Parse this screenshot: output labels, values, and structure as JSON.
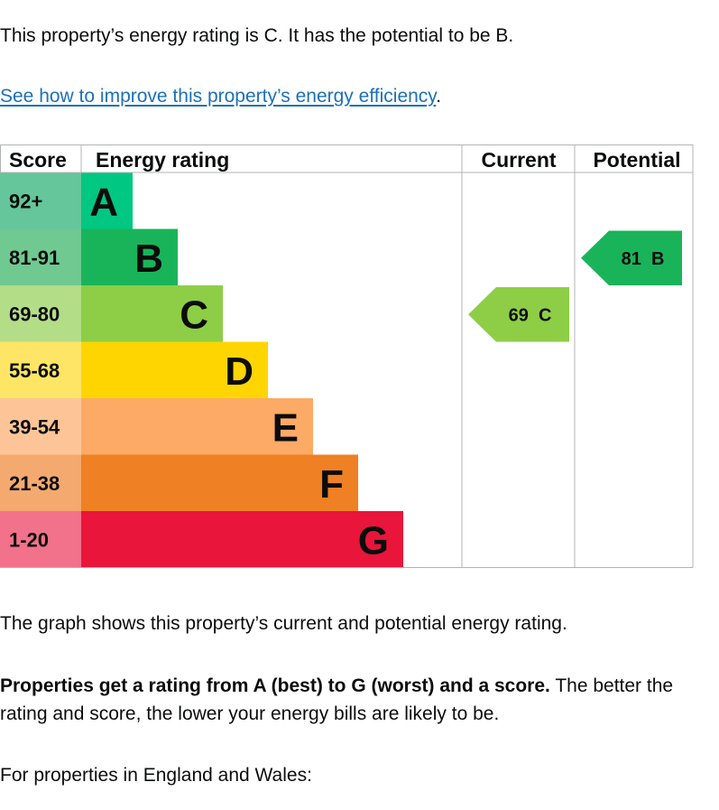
{
  "intro": {
    "rating_sentence": "This property’s energy rating is C. It has the potential to be B.",
    "improve_link": "See how to improve this property’s energy efficiency",
    "improve_link_suffix": "."
  },
  "chart": {
    "headers": {
      "score": "Score",
      "energy_rating": "Energy rating",
      "current": "Current",
      "potential": "Potential"
    },
    "bands": [
      {
        "score": "92+",
        "letter": "A",
        "color": "#00c781",
        "score_bg": "#64c69a"
      },
      {
        "score": "81-91",
        "letter": "B",
        "color": "#19b459",
        "score_bg": "#6fc990"
      },
      {
        "score": "69-80",
        "letter": "C",
        "color": "#8dce46",
        "score_bg": "#b4dd88"
      },
      {
        "score": "55-68",
        "letter": "D",
        "color": "#ffd500",
        "score_bg": "#ffe565"
      },
      {
        "score": "39-54",
        "letter": "E",
        "color": "#fcaa65",
        "score_bg": "#fdc597"
      },
      {
        "score": "21-38",
        "letter": "F",
        "color": "#ef8023",
        "score_bg": "#f4a96e"
      },
      {
        "score": "1-20",
        "letter": "G",
        "color": "#e9153b",
        "score_bg": "#f1728a"
      }
    ],
    "current": {
      "score": "69",
      "letter": "C",
      "band_index": 2,
      "color": "#8dce46"
    },
    "potential": {
      "score": "81",
      "letter": "B",
      "band_index": 1,
      "color": "#19b459"
    }
  },
  "explanation": {
    "graph_note": "The graph shows this property’s current and potential energy rating.",
    "bold_lead": "Properties get a rating from A (best) to G (worst) and a score.",
    "rest": " The better the rating and score, the lower your energy bills are likely to be.",
    "regions_intro": "For properties in England and Wales:"
  }
}
